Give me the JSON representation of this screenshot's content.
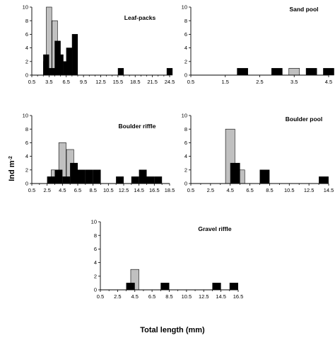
{
  "figure": {
    "ylabel": "Ind m",
    "ylabel_sup": "-2",
    "xlabel": "Total length (mm)"
  },
  "chart_data": [
    {
      "type": "bar",
      "title": "Leaf-packs",
      "ylim": [
        0,
        10
      ],
      "yticks": [
        0,
        2,
        4,
        6,
        8,
        10
      ],
      "xticks": [
        "0.5",
        "3.5",
        "6.5",
        "9.5",
        "12.5",
        "15.5",
        "18.5",
        "21.5",
        "24.5"
      ],
      "categories": [
        "3.0",
        "3.5",
        "4.0",
        "4.5",
        "5.0",
        "5.5",
        "6.0",
        "6.5",
        "7.0",
        "7.5",
        "8.0",
        "8.5",
        "16.0",
        "24.5"
      ],
      "series": [
        {
          "color": "#c0c0c0",
          "values": [
            2,
            10,
            0,
            8,
            5,
            0,
            2,
            0,
            0,
            0,
            0,
            0,
            0,
            0
          ]
        },
        {
          "color": "#000000",
          "values": [
            3,
            0,
            1,
            0,
            5,
            3,
            0,
            2,
            4,
            0,
            6,
            0,
            1,
            1
          ]
        }
      ],
      "grid": false
    },
    {
      "type": "bar",
      "title": "Sand pool",
      "ylim": [
        0,
        10
      ],
      "yticks": [
        0,
        2,
        4,
        6,
        8,
        10
      ],
      "xticks": [
        "0.5",
        "1.5",
        "2.5",
        "3.5",
        "4.5"
      ],
      "categories": [
        "2.0",
        "3.0",
        "3.5",
        "4.0",
        "4.5"
      ],
      "series": [
        {
          "color": "#c0c0c0",
          "values": [
            0,
            0,
            1,
            0,
            0
          ]
        },
        {
          "color": "#000000",
          "values": [
            1,
            1,
            0,
            1,
            1
          ]
        }
      ],
      "grid": false
    },
    {
      "type": "bar",
      "title": "Boulder riffle",
      "ylim": [
        0,
        10
      ],
      "yticks": [
        0,
        2,
        4,
        6,
        8,
        10
      ],
      "xticks": [
        "0.5",
        "2.5",
        "4.5",
        "6.5",
        "8.5",
        "10.5",
        "12.5",
        "14.5",
        "16.5",
        "18.5"
      ],
      "categories": [
        "3.0",
        "3.5",
        "4.0",
        "4.5",
        "5.0",
        "5.5",
        "6.0",
        "7.0",
        "8.0",
        "9.0",
        "12.0",
        "14.0",
        "15.0",
        "16.0",
        "17.0"
      ],
      "series": [
        {
          "color": "#c0c0c0",
          "values": [
            0,
            2,
            0,
            6,
            0,
            5,
            0,
            0,
            0,
            0,
            0,
            0,
            0,
            0,
            0
          ]
        },
        {
          "color": "#000000",
          "values": [
            1,
            0,
            2,
            0,
            1,
            0,
            3,
            2,
            2,
            2,
            1,
            1,
            2,
            1,
            1
          ]
        }
      ],
      "grid": false
    },
    {
      "type": "bar",
      "title": "Boulder pool",
      "ylim": [
        0,
        10
      ],
      "yticks": [
        0,
        2,
        4,
        6,
        8,
        10
      ],
      "xticks": [
        "0.5",
        "2.5",
        "4.5",
        "6.5",
        "8.5",
        "10.5",
        "12.5",
        "14.5"
      ],
      "categories": [
        "4.5",
        "5.0",
        "5.5",
        "8.0",
        "14.0"
      ],
      "series": [
        {
          "color": "#c0c0c0",
          "values": [
            8,
            0,
            2,
            0,
            0
          ]
        },
        {
          "color": "#000000",
          "values": [
            0,
            3,
            0,
            2,
            1
          ]
        }
      ],
      "grid": false
    },
    {
      "type": "bar",
      "title": "Gravel riffle",
      "ylim": [
        0,
        10
      ],
      "yticks": [
        0,
        2,
        4,
        6,
        8,
        10
      ],
      "xticks": [
        "0.5",
        "2.5",
        "4.5",
        "6.5",
        "8.5",
        "10.5",
        "12.5",
        "14.5",
        "16.5"
      ],
      "categories": [
        "4.0",
        "4.5",
        "8.0",
        "14.0",
        "16.0"
      ],
      "series": [
        {
          "color": "#c0c0c0",
          "values": [
            0,
            3,
            0,
            0,
            0
          ]
        },
        {
          "color": "#000000",
          "values": [
            1,
            0,
            1,
            1,
            1
          ]
        }
      ],
      "grid": false
    }
  ]
}
